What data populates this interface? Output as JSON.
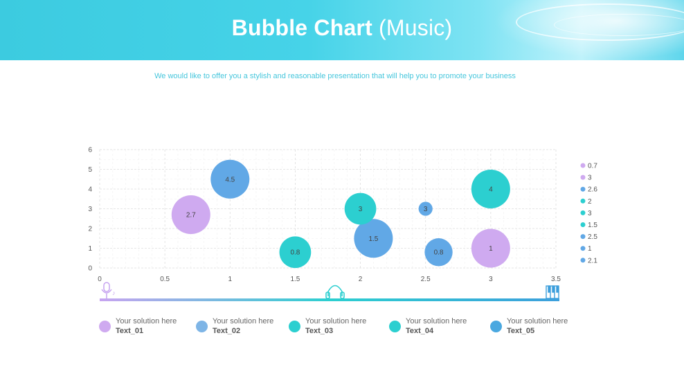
{
  "header": {
    "title_bold": "Bubble Chart",
    "title_light": "(Music)"
  },
  "subtitle": "We would like to offer you a stylish and reasonable presentation that will help you to promote your business",
  "colors": {
    "lavender": "#cfaaf0",
    "blue": "#61a8e6",
    "teal": "#2ccfd0",
    "axis": "#3aa9d8"
  },
  "chart_data": {
    "type": "scatter",
    "title": "",
    "xlabel": "",
    "ylabel": "",
    "xlim": [
      0,
      3.5
    ],
    "ylim": [
      0,
      6
    ],
    "x_ticks": [
      "0",
      "0.5",
      "1",
      "1.5",
      "2",
      "2.5",
      "3",
      "3.5"
    ],
    "y_ticks": [
      "0",
      "1",
      "2",
      "3",
      "4",
      "5",
      "6"
    ],
    "grid": true,
    "legend_position": "right",
    "points": [
      {
        "x": 0.7,
        "y": 2.7,
        "size": 2.7,
        "label": "2.7",
        "color": "#cfaaf0"
      },
      {
        "x": 3.0,
        "y": 1.0,
        "size": 2.7,
        "label": "1",
        "color": "#cfaaf0"
      },
      {
        "x": 1.0,
        "y": 4.5,
        "size": 2.7,
        "label": "4.5",
        "color": "#61a8e6"
      },
      {
        "x": 2.1,
        "y": 1.5,
        "size": 2.7,
        "label": "1.5",
        "color": "#61a8e6"
      },
      {
        "x": 2.6,
        "y": 0.8,
        "size": 1.4,
        "label": "0.8",
        "color": "#61a8e6"
      },
      {
        "x": 2.5,
        "y": 3.0,
        "size": 0.35,
        "label": "3",
        "color": "#61a8e6"
      },
      {
        "x": 1.5,
        "y": 0.8,
        "size": 1.8,
        "label": "0.8",
        "color": "#2ccfd0"
      },
      {
        "x": 2.0,
        "y": 3.0,
        "size": 1.8,
        "label": "3",
        "color": "#2ccfd0"
      },
      {
        "x": 3.0,
        "y": 4.0,
        "size": 2.7,
        "label": "4",
        "color": "#2ccfd0"
      }
    ],
    "legend": [
      {
        "label": "0.7",
        "color": "#cfaaf0"
      },
      {
        "label": "3",
        "color": "#cfaaf0"
      },
      {
        "label": "2.6",
        "color": "#61a8e6"
      },
      {
        "label": "2",
        "color": "#2ccfd0"
      },
      {
        "label": "3",
        "color": "#2ccfd0"
      },
      {
        "label": "1.5",
        "color": "#2ccfd0"
      },
      {
        "label": "2.5",
        "color": "#61a8e6"
      },
      {
        "label": "1",
        "color": "#61a8e6"
      },
      {
        "label": "2.1",
        "color": "#61a8e6"
      }
    ]
  },
  "icons": [
    "microphone-icon",
    "headphones-icon",
    "piano-keys-icon"
  ],
  "footer_items": [
    {
      "line1": "Your solution here",
      "line2": "Text_01",
      "color": "#cfaaf0"
    },
    {
      "line1": "Your solution here",
      "line2": "Text_02",
      "color": "#7eb5e6"
    },
    {
      "line1": "Your solution here",
      "line2": "Text_03",
      "color": "#2ccfd0"
    },
    {
      "line1": "Your solution here",
      "line2": "Text_04",
      "color": "#2ccfd0"
    },
    {
      "line1": "Your solution here",
      "line2": "Text_05",
      "color": "#4aa8e0"
    }
  ]
}
